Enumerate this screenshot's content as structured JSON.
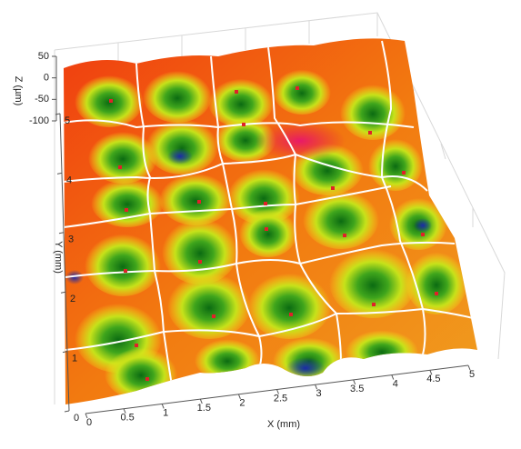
{
  "chart_data": {
    "type": "surface3d",
    "x_label": "X (mm)",
    "y_label": "Y (mm)",
    "z_label": "Z (µm)",
    "xlim": [
      0,
      5
    ],
    "xticks": [
      0,
      0.5,
      1,
      1.5,
      2,
      2.5,
      3,
      3.5,
      4,
      4.5,
      5
    ],
    "ylim": [
      0,
      5
    ],
    "yticks": [
      0,
      1,
      2,
      3,
      4,
      5
    ],
    "zlim": [
      50,
      -100
    ],
    "zticks": [
      50,
      0,
      -50,
      -100
    ]
  }
}
